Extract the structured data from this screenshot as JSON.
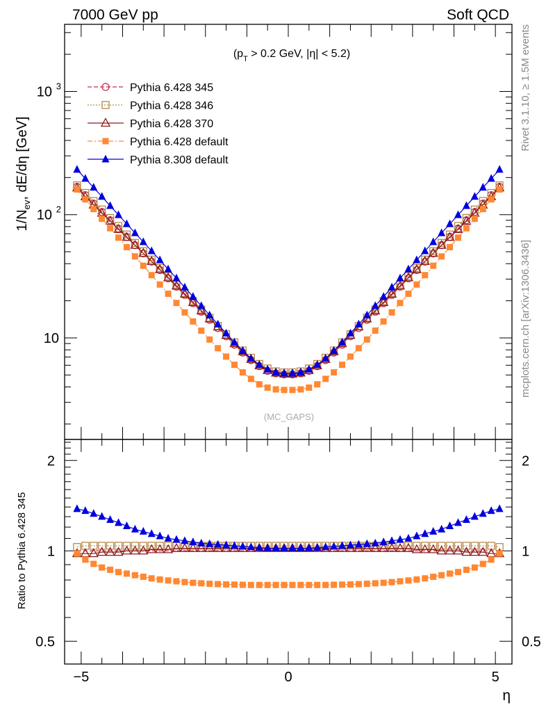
{
  "header": {
    "left": "7000 GeV pp",
    "right": "Soft QCD"
  },
  "side_labels": {
    "rivet": "Rivet 3.1.10, ≥ 1.5M events",
    "mcplots": "mcplots.cern.ch [arXiv:1306.3436]"
  },
  "colors": {
    "p345": "#c0304a",
    "p346": "#b8884a",
    "p370": "#8b1a1a",
    "p6def": "#ff8833",
    "p8def": "#0000dd"
  },
  "chart_data": [
    {
      "type": "line",
      "annotation": "(p_T > 0.2 GeV, |η| < 5.2)",
      "watermark": "(MC_GAPS)",
      "ylabel": "1/N_ev, dE/dη [GeV]",
      "yscale": "log",
      "ylim": [
        1.5,
        3500
      ],
      "xlim": [
        -5.4,
        5.4
      ],
      "y_ticks": [
        "10",
        "10^2",
        "10^3"
      ],
      "x": [
        -5.1,
        -4.9,
        -4.7,
        -4.5,
        -4.3,
        -4.1,
        -3.9,
        -3.7,
        -3.5,
        -3.3,
        -3.1,
        -2.9,
        -2.7,
        -2.5,
        -2.3,
        -2.1,
        -1.9,
        -1.7,
        -1.5,
        -1.3,
        -1.1,
        -0.9,
        -0.7,
        -0.5,
        -0.3,
        -0.1,
        0.1,
        0.3,
        0.5,
        0.7,
        0.9,
        1.1,
        1.3,
        1.5,
        1.7,
        1.9,
        2.1,
        2.3,
        2.5,
        2.7,
        2.9,
        3.1,
        3.3,
        3.5,
        3.7,
        3.9,
        4.1,
        4.3,
        4.5,
        4.7,
        4.9,
        5.1
      ],
      "series": [
        {
          "name": "Pythia 6.428 345",
          "marker": "open-circle",
          "dash": "dashed",
          "color_key": "p345",
          "values": [
            168,
            144,
            123,
            105,
            90,
            77,
            66,
            56.5,
            48.4,
            41.5,
            35.5,
            30.4,
            26.0,
            22.3,
            19.1,
            16.3,
            14.0,
            12.0,
            10.3,
            8.8,
            7.6,
            6.6,
            5.9,
            5.4,
            5.15,
            5.05,
            5.05,
            5.15,
            5.4,
            5.9,
            6.6,
            7.6,
            8.8,
            10.3,
            12.0,
            14.0,
            16.3,
            19.1,
            22.3,
            26.0,
            30.4,
            35.5,
            41.5,
            48.4,
            56.5,
            66,
            77,
            90,
            105,
            123,
            144,
            168
          ]
        },
        {
          "name": "Pythia 6.428 346",
          "marker": "open-square",
          "dash": "dotted",
          "color_key": "p346",
          "values": [
            173,
            150,
            129,
            110,
            94,
            81,
            69,
            59,
            50.5,
            43.2,
            37.0,
            31.7,
            27.1,
            23.2,
            19.9,
            17.0,
            14.6,
            12.5,
            10.7,
            9.2,
            7.9,
            6.9,
            6.15,
            5.65,
            5.35,
            5.25,
            5.25,
            5.35,
            5.65,
            6.15,
            6.9,
            7.9,
            9.2,
            10.7,
            12.5,
            14.6,
            17.0,
            19.9,
            23.2,
            27.1,
            31.7,
            37.0,
            43.2,
            50.5,
            59,
            69,
            81,
            94,
            110,
            129,
            150,
            173
          ]
        },
        {
          "name": "Pythia 6.428 370",
          "marker": "open-triangle",
          "dash": "solid",
          "color_key": "p370",
          "values": [
            165,
            140,
            120,
            103,
            88.5,
            76,
            65.5,
            56.5,
            48.6,
            41.8,
            35.9,
            30.8,
            26.4,
            22.7,
            19.4,
            16.6,
            14.3,
            12.3,
            10.5,
            9.0,
            7.75,
            6.7,
            5.95,
            5.45,
            5.2,
            5.1,
            5.1,
            5.2,
            5.45,
            5.95,
            6.7,
            7.75,
            9.0,
            10.5,
            12.3,
            14.3,
            16.6,
            19.4,
            22.7,
            26.4,
            30.8,
            35.9,
            41.8,
            48.6,
            56.5,
            65.5,
            76,
            88.5,
            103,
            120,
            140,
            165
          ]
        },
        {
          "name": "Pythia 6.428 default",
          "marker": "filled-square",
          "dash": "dashdot",
          "color_key": "p6def",
          "values": [
            160,
            133,
            111,
            92.5,
            77.5,
            65,
            54.5,
            45.8,
            38.5,
            32.3,
            27.1,
            22.8,
            19.2,
            16.1,
            13.6,
            11.45,
            9.7,
            8.25,
            7.05,
            6.05,
            5.25,
            4.65,
            4.2,
            3.95,
            3.82,
            3.78,
            3.78,
            3.82,
            3.95,
            4.2,
            4.65,
            5.25,
            6.05,
            7.05,
            8.25,
            9.7,
            11.45,
            13.6,
            16.1,
            19.2,
            22.8,
            27.1,
            32.3,
            38.5,
            45.8,
            54.5,
            65,
            77.5,
            92.5,
            111,
            133,
            160
          ]
        },
        {
          "name": "Pythia 8.308 default",
          "marker": "filled-triangle",
          "dash": "solid",
          "color_key": "p8def",
          "values": [
            232,
            196,
            166,
            140,
            118,
            99.5,
            84,
            71,
            60,
            50.7,
            42.8,
            36.1,
            30.5,
            25.7,
            21.6,
            18.2,
            15.3,
            12.9,
            10.9,
            9.2,
            7.85,
            6.8,
            6.05,
            5.55,
            5.25,
            5.15,
            5.15,
            5.25,
            5.55,
            6.05,
            6.8,
            7.85,
            9.2,
            10.9,
            12.9,
            15.3,
            18.2,
            21.6,
            25.7,
            30.5,
            36.1,
            42.8,
            50.7,
            60,
            71,
            84,
            99.5,
            118,
            140,
            166,
            196,
            232
          ]
        }
      ]
    },
    {
      "type": "line",
      "ylabel": "Ratio to Pythia 6.428 345",
      "xlabel": "η",
      "yscale": "log",
      "ylim": [
        0.42,
        2.35
      ],
      "xlim": [
        -5.4,
        5.4
      ],
      "x_ticks": [
        "−5",
        "0",
        "5"
      ],
      "y_ticks": [
        "0.5",
        "1",
        "2"
      ],
      "x": [
        -5.1,
        -4.9,
        -4.7,
        -4.5,
        -4.3,
        -4.1,
        -3.9,
        -3.7,
        -3.5,
        -3.3,
        -3.1,
        -2.9,
        -2.7,
        -2.5,
        -2.3,
        -2.1,
        -1.9,
        -1.7,
        -1.5,
        -1.3,
        -1.1,
        -0.9,
        -0.7,
        -0.5,
        -0.3,
        -0.1,
        0.1,
        0.3,
        0.5,
        0.7,
        0.9,
        1.1,
        1.3,
        1.5,
        1.7,
        1.9,
        2.1,
        2.3,
        2.5,
        2.7,
        2.9,
        3.1,
        3.3,
        3.5,
        3.7,
        3.9,
        4.1,
        4.3,
        4.5,
        4.7,
        4.9,
        5.1
      ],
      "series": [
        {
          "name": "Pythia 6.428 345",
          "marker": "none",
          "dash": "dashed",
          "color_key": "p345",
          "values": [
            1.0,
            1.0,
            1.0,
            1.0,
            1.0,
            1.0,
            1.0,
            1.0,
            1.0,
            1.0,
            1.0,
            1.0,
            1.0,
            1.0,
            1.0,
            1.0,
            1.0,
            1.0,
            1.0,
            1.0,
            1.0,
            1.0,
            1.0,
            1.0,
            1.0,
            1.0,
            1.0,
            1.0,
            1.0,
            1.0,
            1.0,
            1.0,
            1.0,
            1.0,
            1.0,
            1.0,
            1.0,
            1.0,
            1.0,
            1.0,
            1.0,
            1.0,
            1.0,
            1.0,
            1.0,
            1.0,
            1.0,
            1.0,
            1.0,
            1.0,
            1.0,
            1.0
          ]
        },
        {
          "name": "Pythia 6.428 346",
          "marker": "open-square",
          "dash": "dotted",
          "color_key": "p346",
          "values": [
            1.03,
            1.04,
            1.04,
            1.04,
            1.04,
            1.04,
            1.04,
            1.04,
            1.04,
            1.04,
            1.04,
            1.04,
            1.04,
            1.04,
            1.04,
            1.04,
            1.04,
            1.04,
            1.04,
            1.04,
            1.04,
            1.04,
            1.04,
            1.04,
            1.04,
            1.04,
            1.04,
            1.04,
            1.04,
            1.04,
            1.04,
            1.04,
            1.04,
            1.04,
            1.04,
            1.04,
            1.04,
            1.04,
            1.04,
            1.04,
            1.04,
            1.04,
            1.04,
            1.04,
            1.04,
            1.04,
            1.04,
            1.04,
            1.04,
            1.04,
            1.04,
            1.03
          ]
        },
        {
          "name": "Pythia 6.428 370",
          "marker": "open-triangle",
          "dash": "solid",
          "color_key": "p370",
          "values": [
            0.98,
            0.98,
            0.98,
            0.99,
            0.99,
            0.99,
            1.0,
            1.0,
            1.0,
            1.01,
            1.01,
            1.01,
            1.02,
            1.02,
            1.02,
            1.02,
            1.02,
            1.02,
            1.02,
            1.02,
            1.02,
            1.02,
            1.02,
            1.02,
            1.02,
            1.02,
            1.02,
            1.02,
            1.02,
            1.02,
            1.02,
            1.02,
            1.02,
            1.02,
            1.02,
            1.02,
            1.02,
            1.02,
            1.02,
            1.02,
            1.02,
            1.01,
            1.01,
            1.01,
            1.0,
            1.0,
            1.0,
            0.99,
            0.99,
            0.99,
            0.98,
            0.98
          ]
        },
        {
          "name": "Pythia 6.428 default",
          "marker": "filled-square",
          "dash": "dashdot",
          "color_key": "p6def",
          "values": [
            0.98,
            0.935,
            0.905,
            0.88,
            0.865,
            0.85,
            0.84,
            0.83,
            0.82,
            0.81,
            0.803,
            0.797,
            0.792,
            0.787,
            0.783,
            0.78,
            0.777,
            0.775,
            0.773,
            0.772,
            0.771,
            0.77,
            0.77,
            0.77,
            0.77,
            0.77,
            0.77,
            0.77,
            0.77,
            0.77,
            0.77,
            0.771,
            0.772,
            0.773,
            0.775,
            0.777,
            0.78,
            0.783,
            0.787,
            0.792,
            0.797,
            0.803,
            0.81,
            0.82,
            0.83,
            0.84,
            0.85,
            0.865,
            0.88,
            0.905,
            0.935,
            0.98
          ]
        },
        {
          "name": "Pythia 8.308 default",
          "marker": "filled-triangle",
          "dash": "solid",
          "color_key": "p8def",
          "values": [
            1.38,
            1.36,
            1.33,
            1.3,
            1.27,
            1.24,
            1.21,
            1.18,
            1.16,
            1.14,
            1.12,
            1.1,
            1.09,
            1.08,
            1.07,
            1.06,
            1.055,
            1.05,
            1.045,
            1.04,
            1.035,
            1.03,
            1.025,
            1.02,
            1.02,
            1.02,
            1.02,
            1.02,
            1.02,
            1.025,
            1.03,
            1.035,
            1.04,
            1.045,
            1.05,
            1.055,
            1.06,
            1.07,
            1.08,
            1.09,
            1.1,
            1.12,
            1.14,
            1.16,
            1.18,
            1.21,
            1.24,
            1.27,
            1.3,
            1.33,
            1.36,
            1.38
          ]
        }
      ]
    }
  ]
}
